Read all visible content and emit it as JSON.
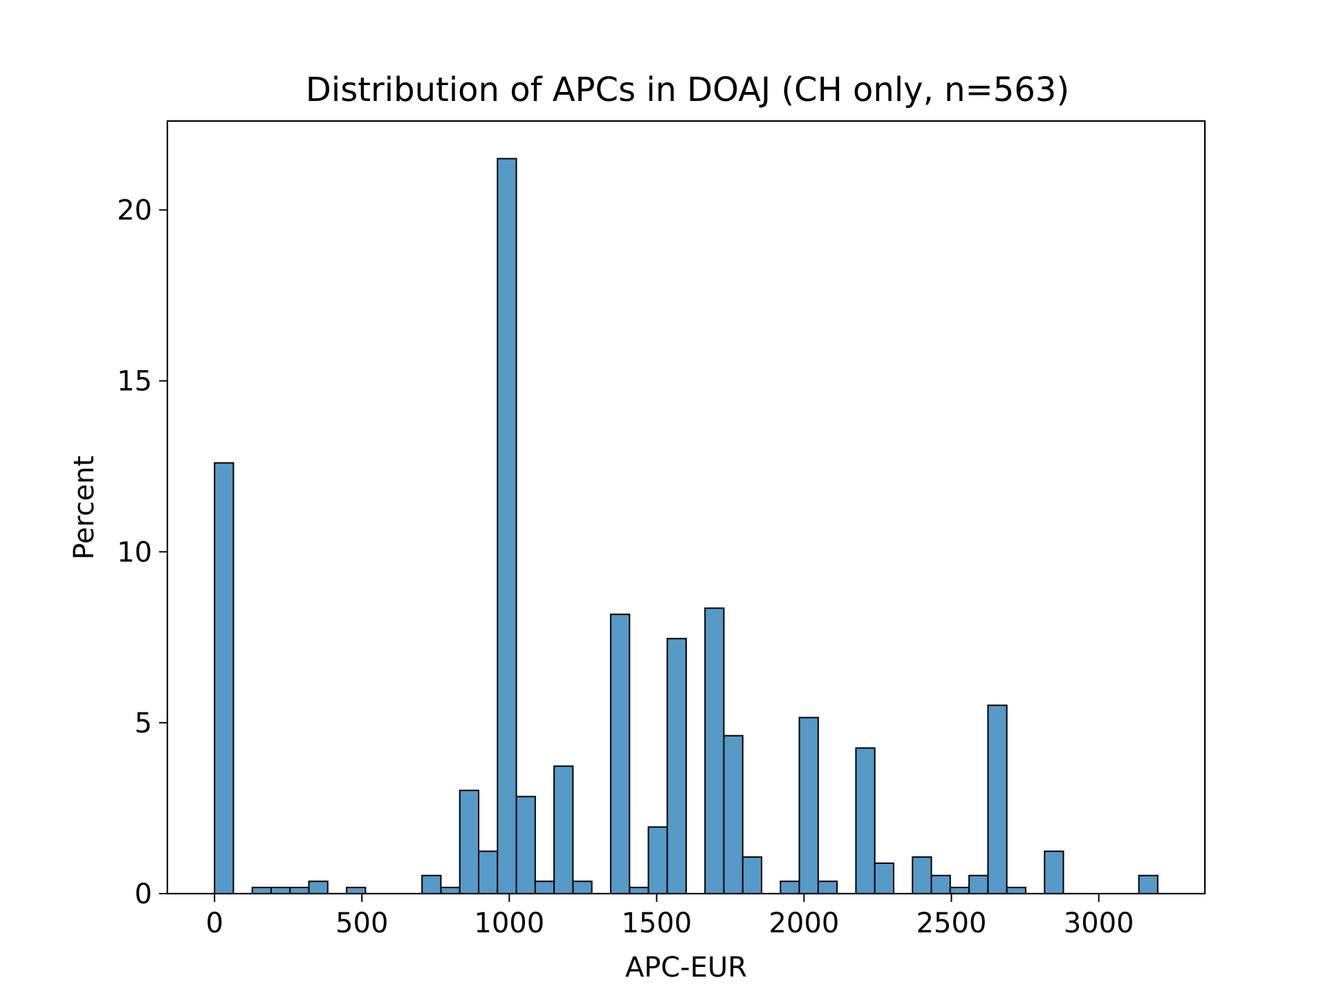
{
  "chart_data": {
    "type": "bar",
    "title": "Distribution of APCs in DOAJ (CH only, n=563)",
    "xlabel": "APC-EUR",
    "ylabel": "Percent",
    "xlim": [
      -160,
      3360
    ],
    "ylim": [
      0,
      22.6
    ],
    "xticks": [
      0,
      500,
      1000,
      1500,
      2000,
      2500,
      3000
    ],
    "yticks": [
      0,
      5,
      10,
      15,
      20
    ],
    "bin_width": 64,
    "bins": [
      {
        "x0": 0,
        "value": 12.6
      },
      {
        "x0": 128,
        "value": 0.18
      },
      {
        "x0": 192,
        "value": 0.18
      },
      {
        "x0": 256,
        "value": 0.18
      },
      {
        "x0": 320,
        "value": 0.36
      },
      {
        "x0": 448,
        "value": 0.18
      },
      {
        "x0": 704,
        "value": 0.53
      },
      {
        "x0": 768,
        "value": 0.18
      },
      {
        "x0": 832,
        "value": 3.02
      },
      {
        "x0": 896,
        "value": 1.24
      },
      {
        "x0": 960,
        "value": 21.5
      },
      {
        "x0": 1024,
        "value": 2.84
      },
      {
        "x0": 1088,
        "value": 0.36
      },
      {
        "x0": 1152,
        "value": 3.73
      },
      {
        "x0": 1216,
        "value": 0.36
      },
      {
        "x0": 1344,
        "value": 8.17
      },
      {
        "x0": 1408,
        "value": 0.18
      },
      {
        "x0": 1472,
        "value": 1.95
      },
      {
        "x0": 1536,
        "value": 7.46
      },
      {
        "x0": 1664,
        "value": 8.35
      },
      {
        "x0": 1728,
        "value": 4.62
      },
      {
        "x0": 1792,
        "value": 1.07
      },
      {
        "x0": 1920,
        "value": 0.36
      },
      {
        "x0": 1984,
        "value": 5.15
      },
      {
        "x0": 2048,
        "value": 0.36
      },
      {
        "x0": 2176,
        "value": 4.26
      },
      {
        "x0": 2240,
        "value": 0.89
      },
      {
        "x0": 2368,
        "value": 1.07
      },
      {
        "x0": 2432,
        "value": 0.53
      },
      {
        "x0": 2496,
        "value": 0.18
      },
      {
        "x0": 2560,
        "value": 0.53
      },
      {
        "x0": 2624,
        "value": 5.51
      },
      {
        "x0": 2688,
        "value": 0.18
      },
      {
        "x0": 2816,
        "value": 1.24
      },
      {
        "x0": 3136,
        "value": 0.53
      }
    ],
    "bar_color": "#5799c7",
    "edge_color": "#000000",
    "grid": false,
    "legend": "none"
  }
}
